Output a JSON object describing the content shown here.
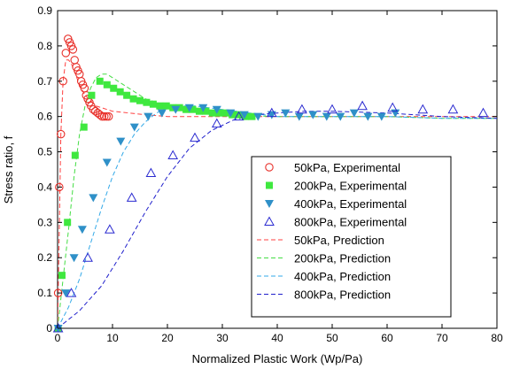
{
  "chart_data": {
    "type": "scatter",
    "title": "",
    "xlabel": "Normalized Plastic Work (Wp/Pa)",
    "ylabel": "Stress ratio, f",
    "xlim": [
      0,
      80
    ],
    "ylim": [
      0,
      0.9
    ],
    "xticks": [
      "0",
      "10",
      "20",
      "30",
      "40",
      "50",
      "60",
      "70",
      "80"
    ],
    "yticks": [
      "0",
      "0.1",
      "0.2",
      "0.3",
      "0.4",
      "0.5",
      "0.6",
      "0.7",
      "0.8",
      "0.9"
    ],
    "grid": false,
    "legend_position": "bottom-right",
    "experimental": [
      {
        "name": "50kPa, Experimental",
        "marker": "circle-open",
        "color": "#e8302a",
        "x": [
          0.1,
          0.3,
          0.6,
          1.0,
          1.5,
          1.9,
          2.2,
          2.5,
          2.8,
          3.1,
          3.4,
          3.7,
          4.0,
          4.3,
          4.6,
          4.9,
          5.2,
          5.5,
          5.8,
          6.1,
          6.5,
          6.9,
          7.3,
          7.7,
          8.1,
          8.5,
          8.9,
          9.3
        ],
        "y": [
          0.1,
          0.4,
          0.55,
          0.7,
          0.78,
          0.82,
          0.81,
          0.8,
          0.79,
          0.76,
          0.74,
          0.73,
          0.72,
          0.7,
          0.69,
          0.68,
          0.66,
          0.65,
          0.64,
          0.63,
          0.62,
          0.615,
          0.61,
          0.605,
          0.6,
          0.6,
          0.6,
          0.6
        ]
      },
      {
        "name": "200kPa, Experimental",
        "marker": "square-filled",
        "color": "#3fe83f",
        "x": [
          0.1,
          0.8,
          1.8,
          3.2,
          4.8,
          6.2,
          7.7,
          9.0,
          10.2,
          11.4,
          12.6,
          13.8,
          15.0,
          16.2,
          17.4,
          18.6,
          19.8,
          21.0,
          22.2,
          23.4,
          24.6,
          25.8,
          27.0,
          28.2,
          29.4,
          30.6,
          31.8,
          33.0,
          34.2,
          35.4
        ],
        "y": [
          0.0,
          0.15,
          0.3,
          0.49,
          0.57,
          0.66,
          0.7,
          0.69,
          0.68,
          0.67,
          0.66,
          0.65,
          0.645,
          0.64,
          0.635,
          0.63,
          0.63,
          0.625,
          0.625,
          0.62,
          0.62,
          0.615,
          0.615,
          0.61,
          0.61,
          0.61,
          0.605,
          0.605,
          0.6,
          0.6
        ]
      },
      {
        "name": "400kPa, Experimental",
        "marker": "triangle-down-filled",
        "color": "#2f90c8",
        "x": [
          0.1,
          1.5,
          3.0,
          4.5,
          6.5,
          9.0,
          11.5,
          14.0,
          16.5,
          19.0,
          21.5,
          24.0,
          26.5,
          29.0,
          31.5,
          34.0,
          36.5,
          39.0,
          41.5,
          44.0,
          46.5,
          49.0,
          51.5,
          54.0,
          56.5,
          59.0,
          61.5
        ],
        "y": [
          0.0,
          0.1,
          0.2,
          0.28,
          0.37,
          0.47,
          0.53,
          0.57,
          0.6,
          0.61,
          0.62,
          0.625,
          0.625,
          0.62,
          0.61,
          0.605,
          0.6,
          0.605,
          0.61,
          0.6,
          0.605,
          0.6,
          0.6,
          0.61,
          0.6,
          0.6,
          0.61
        ]
      },
      {
        "name": "800kPa, Experimental",
        "marker": "triangle-up-open",
        "color": "#2a2ad0",
        "x": [
          0.1,
          2.5,
          5.5,
          9.5,
          13.5,
          17.0,
          21.0,
          25.0,
          29.0,
          33.0,
          39.0,
          44.5,
          50.0,
          55.5,
          61.0,
          66.5,
          72.0,
          77.5
        ],
        "y": [
          0.0,
          0.1,
          0.2,
          0.28,
          0.37,
          0.44,
          0.49,
          0.54,
          0.58,
          0.6,
          0.61,
          0.62,
          0.62,
          0.63,
          0.625,
          0.62,
          0.62,
          0.61
        ]
      }
    ],
    "predictions": [
      {
        "name": "50kPa, Prediction",
        "color": "#ff4040",
        "x": [
          0,
          0.3,
          0.6,
          1.0,
          1.5,
          2.0,
          2.5,
          3.0,
          3.5,
          4.0,
          5.0,
          6.0,
          7.0,
          8.0,
          10.0,
          13.0,
          16.0,
          20.0,
          30.0,
          40.0,
          50.0,
          60.0,
          70.0,
          80.0
        ],
        "y": [
          0,
          0.28,
          0.55,
          0.7,
          0.76,
          0.76,
          0.75,
          0.73,
          0.71,
          0.69,
          0.66,
          0.645,
          0.63,
          0.625,
          0.615,
          0.61,
          0.605,
          0.6,
          0.6,
          0.6,
          0.6,
          0.6,
          0.6,
          0.6
        ]
      },
      {
        "name": "200kPa, Prediction",
        "color": "#44dd44",
        "x": [
          0,
          1.0,
          2.0,
          3.0,
          4.0,
          5.0,
          6.0,
          7.0,
          8.0,
          9.0,
          10.0,
          12.0,
          14.0,
          16.0,
          18.0,
          20.0,
          25.0,
          30.0,
          40.0,
          50.0,
          60.0,
          70.0,
          80.0
        ],
        "y": [
          0,
          0.14,
          0.28,
          0.43,
          0.55,
          0.63,
          0.68,
          0.71,
          0.72,
          0.72,
          0.71,
          0.69,
          0.67,
          0.65,
          0.64,
          0.63,
          0.615,
          0.605,
          0.6,
          0.6,
          0.6,
          0.595,
          0.595
        ]
      },
      {
        "name": "400kPa, Prediction",
        "color": "#33a9e8",
        "x": [
          0,
          2.0,
          4.0,
          6.0,
          8.0,
          10.0,
          12.0,
          14.0,
          16.0,
          18.0,
          20.0,
          22.0,
          25.0,
          30.0,
          35.0,
          40.0,
          50.0,
          60.0,
          70.0,
          80.0
        ],
        "y": [
          0,
          0.06,
          0.14,
          0.24,
          0.34,
          0.43,
          0.5,
          0.55,
          0.585,
          0.61,
          0.625,
          0.63,
          0.63,
          0.62,
          0.61,
          0.6,
          0.6,
          0.6,
          0.595,
          0.595
        ]
      },
      {
        "name": "800kPa, Prediction",
        "color": "#2020cc",
        "x": [
          0,
          4.0,
          8.0,
          12.0,
          16.0,
          20.0,
          24.0,
          28.0,
          32.0,
          36.0,
          40.0,
          45.0,
          50.0,
          60.0,
          70.0,
          80.0
        ],
        "y": [
          0,
          0.05,
          0.12,
          0.22,
          0.33,
          0.43,
          0.51,
          0.56,
          0.59,
          0.605,
          0.61,
          0.615,
          0.615,
          0.61,
          0.6,
          0.595
        ]
      }
    ]
  }
}
